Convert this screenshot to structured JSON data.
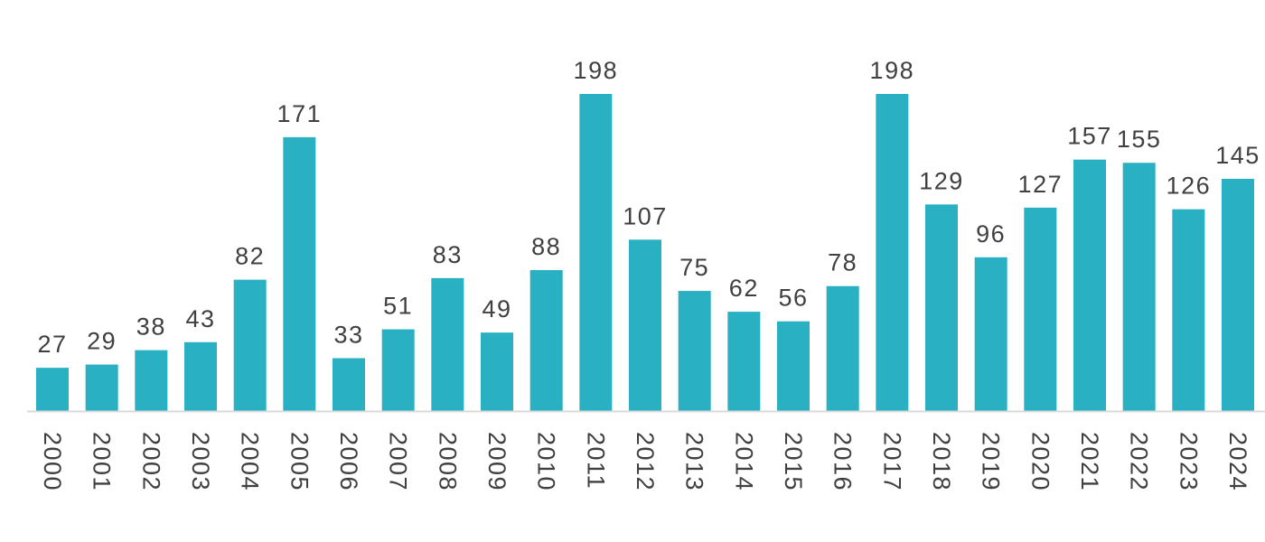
{
  "chart_data": {
    "type": "bar",
    "categories": [
      "2000",
      "2001",
      "2002",
      "2003",
      "2004",
      "2005",
      "2006",
      "2007",
      "2008",
      "2009",
      "2010",
      "2011",
      "2012",
      "2013",
      "2014",
      "2015",
      "2016",
      "2017",
      "2018",
      "2019",
      "2020",
      "2021",
      "2022",
      "2023",
      "2024"
    ],
    "values": [
      27,
      29,
      38,
      43,
      82,
      171,
      33,
      51,
      83,
      49,
      88,
      198,
      107,
      75,
      62,
      56,
      78,
      198,
      129,
      96,
      127,
      157,
      155,
      126,
      145
    ],
    "data_labels": [
      "27",
      "29",
      "38",
      "43",
      "82",
      "171",
      "33",
      "51",
      "83",
      "49",
      "88",
      "198",
      "107",
      "75",
      "62",
      "56",
      "78",
      "198",
      "129",
      "96",
      "127",
      "157",
      "155",
      "126",
      "145"
    ],
    "ylim": [
      0,
      198
    ],
    "x_tick_orientation": "rotated-vertical",
    "grid": false,
    "legend": "none",
    "y_axis_visible": false,
    "colors": {
      "bar": "#29B0C2",
      "axis": "#D9D9D9",
      "text": "#404040"
    }
  }
}
